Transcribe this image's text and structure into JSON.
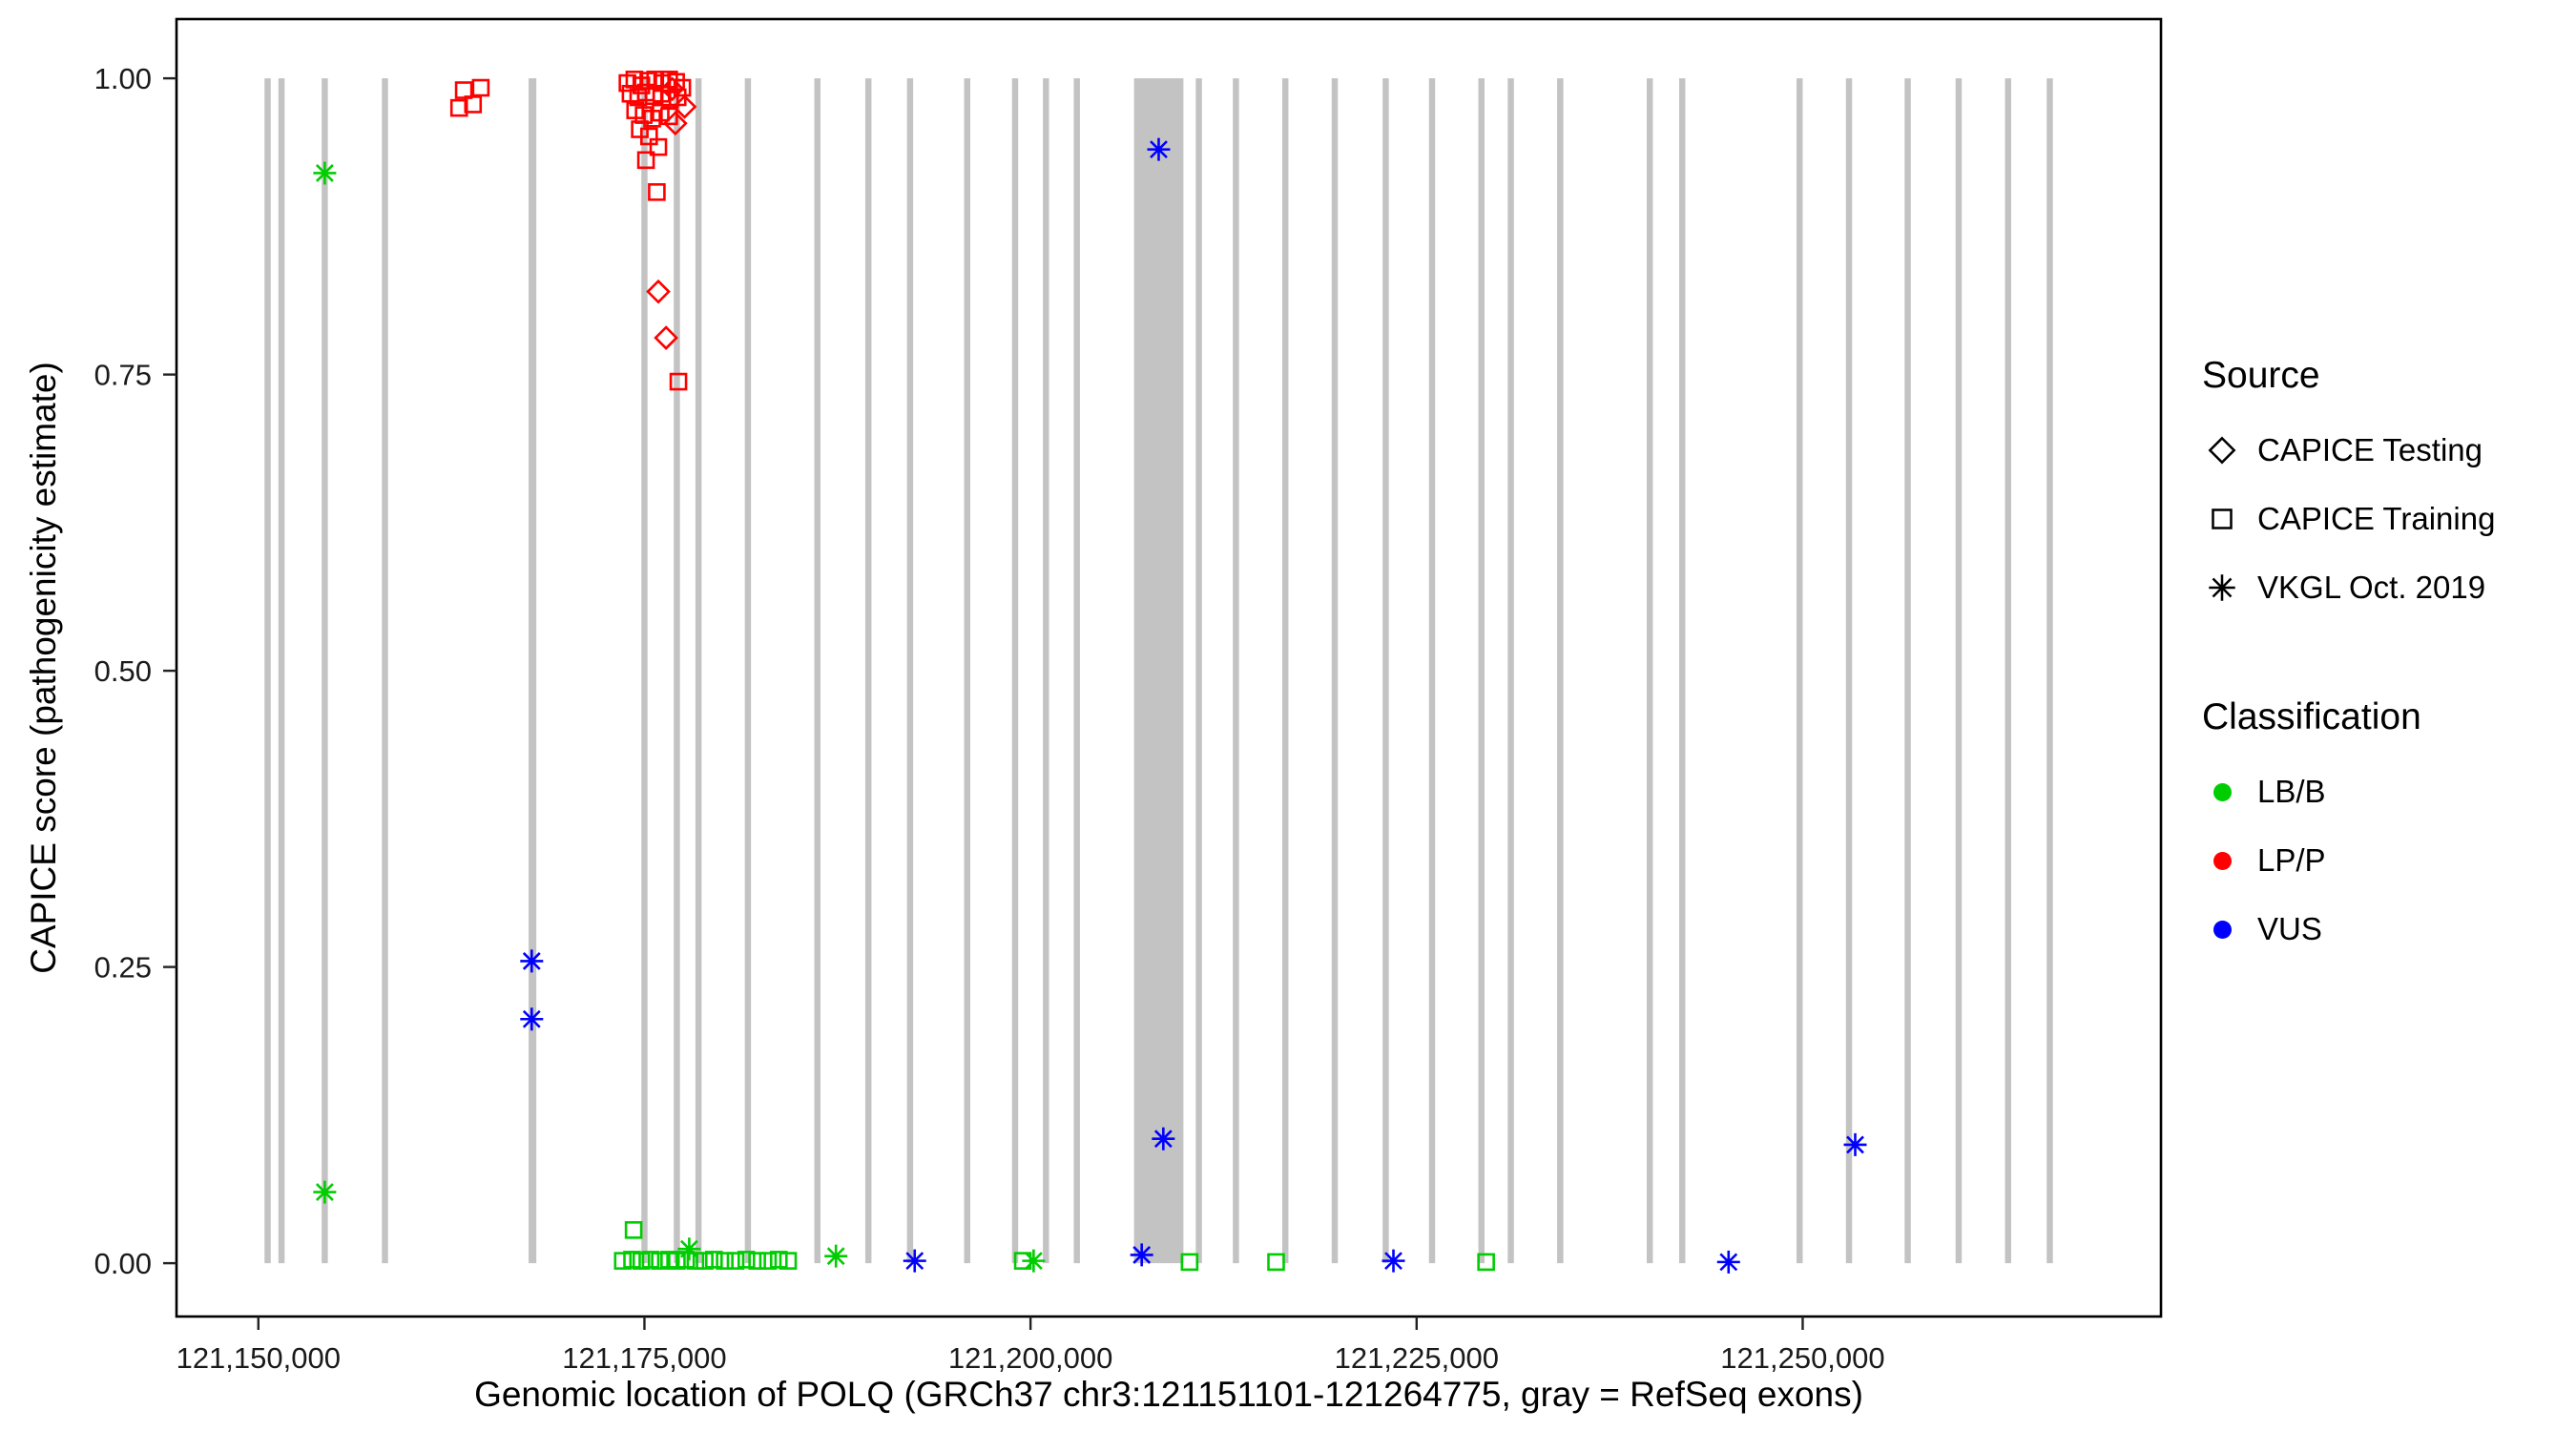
{
  "legend": {
    "source": {
      "title": "Source",
      "items": [
        {
          "label": "CAPICE Testing",
          "shape": "diamond"
        },
        {
          "label": "CAPICE Training",
          "shape": "square"
        },
        {
          "label": "VKGL Oct. 2019",
          "shape": "asterisk"
        }
      ]
    },
    "classification": {
      "title": "Classification",
      "items": [
        {
          "label": "LB/B",
          "color": "#00CD00"
        },
        {
          "label": "LP/P",
          "color": "#FF0000"
        },
        {
          "label": "VUS",
          "color": "#0000FF"
        }
      ]
    }
  },
  "chart_data": {
    "type": "scatter",
    "title": "",
    "xlabel": "Genomic location of POLQ (GRCh37 chr3:121151101-121264775, gray = RefSeq exons)",
    "ylabel": "CAPICE score (pathogenicity estimate)",
    "xlim": [
      121144700,
      121273200
    ],
    "ylim": [
      -0.045,
      1.05
    ],
    "x_ticks": [
      121150000,
      121175000,
      121200000,
      121225000,
      121250000
    ],
    "x_tick_labels": [
      "121,150,000",
      "121,175,000",
      "121,200,000",
      "121,225,000",
      "121,250,000"
    ],
    "y_ticks": [
      0,
      0.25,
      0.5,
      0.75,
      1
    ],
    "y_tick_labels": [
      "0.00",
      "0.25",
      "0.50",
      "0.75",
      "1.00"
    ],
    "grid": false,
    "legend_position": "right",
    "exon_color": "#C3C3C3",
    "colors": {
      "LB/B": "#00CD00",
      "LP/P": "#FF0000",
      "VUS": "#0000FF"
    },
    "exons": [
      [
        121150400,
        121150800
      ],
      [
        121151300,
        121151700
      ],
      [
        121154100,
        121154500
      ],
      [
        121158000,
        121158400
      ],
      [
        121167500,
        121168000
      ],
      [
        121174800,
        121175200
      ],
      [
        121176900,
        121177300
      ],
      [
        121178300,
        121178700
      ],
      [
        121181500,
        121181900
      ],
      [
        121186000,
        121186400
      ],
      [
        121189300,
        121189700
      ],
      [
        121192000,
        121192400
      ],
      [
        121195700,
        121196100
      ],
      [
        121198800,
        121199200
      ],
      [
        121200800,
        121201200
      ],
      [
        121202800,
        121203200
      ],
      [
        121206700,
        121209900
      ],
      [
        121210700,
        121211100
      ],
      [
        121213100,
        121213500
      ],
      [
        121216300,
        121216700
      ],
      [
        121219500,
        121219900
      ],
      [
        121222800,
        121223200
      ],
      [
        121225800,
        121226200
      ],
      [
        121229000,
        121229400
      ],
      [
        121230900,
        121231300
      ],
      [
        121234100,
        121234500
      ],
      [
        121239900,
        121240300
      ],
      [
        121242000,
        121242400
      ],
      [
        121249600,
        121250000
      ],
      [
        121252800,
        121253200
      ],
      [
        121256600,
        121257000
      ],
      [
        121259900,
        121260300
      ],
      [
        121263100,
        121263500
      ],
      [
        121265800,
        121266200
      ]
    ],
    "series": [
      {
        "name": "CAPICE Testing",
        "shape": "diamond",
        "points": [
          {
            "x": 121176800,
            "y": 0.991,
            "cls": "LP/P"
          },
          {
            "x": 121177600,
            "y": 0.976,
            "cls": "LP/P"
          },
          {
            "x": 121177000,
            "y": 0.962,
            "cls": "LP/P"
          },
          {
            "x": 121175900,
            "y": 0.82,
            "cls": "LP/P"
          },
          {
            "x": 121176400,
            "y": 0.781,
            "cls": "LP/P"
          }
        ]
      },
      {
        "name": "CAPICE Training",
        "shape": "square",
        "points": [
          {
            "x": 121163000,
            "y": 0.975,
            "cls": "LP/P"
          },
          {
            "x": 121163300,
            "y": 0.99,
            "cls": "LP/P"
          },
          {
            "x": 121164400,
            "y": 0.992,
            "cls": "LP/P"
          },
          {
            "x": 121163900,
            "y": 0.978,
            "cls": "LP/P"
          },
          {
            "x": 121173900,
            "y": 0.996,
            "cls": "LP/P"
          },
          {
            "x": 121174350,
            "y": 0.999,
            "cls": "LP/P"
          },
          {
            "x": 121174800,
            "y": 0.994,
            "cls": "LP/P"
          },
          {
            "x": 121175250,
            "y": 0.998,
            "cls": "LP/P"
          },
          {
            "x": 121175700,
            "y": 0.999,
            "cls": "LP/P"
          },
          {
            "x": 121176150,
            "y": 0.996,
            "cls": "LP/P"
          },
          {
            "x": 121176600,
            "y": 0.999,
            "cls": "LP/P"
          },
          {
            "x": 121177050,
            "y": 0.997,
            "cls": "LP/P"
          },
          {
            "x": 121177450,
            "y": 0.992,
            "cls": "LP/P"
          },
          {
            "x": 121174100,
            "y": 0.987,
            "cls": "LP/P"
          },
          {
            "x": 121174600,
            "y": 0.984,
            "cls": "LP/P"
          },
          {
            "x": 121175100,
            "y": 0.988,
            "cls": "LP/P"
          },
          {
            "x": 121175600,
            "y": 0.985,
            "cls": "LP/P"
          },
          {
            "x": 121176100,
            "y": 0.987,
            "cls": "LP/P"
          },
          {
            "x": 121176650,
            "y": 0.982,
            "cls": "LP/P"
          },
          {
            "x": 121177150,
            "y": 0.984,
            "cls": "LP/P"
          },
          {
            "x": 121174400,
            "y": 0.973,
            "cls": "LP/P"
          },
          {
            "x": 121174950,
            "y": 0.969,
            "cls": "LP/P"
          },
          {
            "x": 121175500,
            "y": 0.966,
            "cls": "LP/P"
          },
          {
            "x": 121176050,
            "y": 0.971,
            "cls": "LP/P"
          },
          {
            "x": 121176600,
            "y": 0.968,
            "cls": "LP/P"
          },
          {
            "x": 121174700,
            "y": 0.957,
            "cls": "LP/P"
          },
          {
            "x": 121175300,
            "y": 0.951,
            "cls": "LP/P"
          },
          {
            "x": 121175900,
            "y": 0.942,
            "cls": "LP/P"
          },
          {
            "x": 121175100,
            "y": 0.931,
            "cls": "LP/P"
          },
          {
            "x": 121175800,
            "y": 0.904,
            "cls": "LP/P"
          },
          {
            "x": 121177200,
            "y": 0.744,
            "cls": "LP/P"
          },
          {
            "x": 121174300,
            "y": 0.028,
            "cls": "LB/B"
          },
          {
            "x": 121173600,
            "y": 0.002,
            "cls": "LB/B"
          },
          {
            "x": 121174200,
            "y": 0.003,
            "cls": "LB/B"
          },
          {
            "x": 121174800,
            "y": 0.002,
            "cls": "LB/B"
          },
          {
            "x": 121175400,
            "y": 0.003,
            "cls": "LB/B"
          },
          {
            "x": 121176000,
            "y": 0.002,
            "cls": "LB/B"
          },
          {
            "x": 121176600,
            "y": 0.003,
            "cls": "LB/B"
          },
          {
            "x": 121177100,
            "y": 0.002,
            "cls": "LB/B"
          },
          {
            "x": 121177700,
            "y": 0.003,
            "cls": "LB/B"
          },
          {
            "x": 121178300,
            "y": 0.002,
            "cls": "LB/B"
          },
          {
            "x": 121178900,
            "y": 0.002,
            "cls": "LB/B"
          },
          {
            "x": 121179500,
            "y": 0.003,
            "cls": "LB/B"
          },
          {
            "x": 121180200,
            "y": 0.002,
            "cls": "LB/B"
          },
          {
            "x": 121180900,
            "y": 0.002,
            "cls": "LB/B"
          },
          {
            "x": 121181600,
            "y": 0.003,
            "cls": "LB/B"
          },
          {
            "x": 121182300,
            "y": 0.002,
            "cls": "LB/B"
          },
          {
            "x": 121183000,
            "y": 0.002,
            "cls": "LB/B"
          },
          {
            "x": 121183700,
            "y": 0.003,
            "cls": "LB/B"
          },
          {
            "x": 121184300,
            "y": 0.002,
            "cls": "LB/B"
          },
          {
            "x": 121199500,
            "y": 0.002,
            "cls": "LB/B"
          },
          {
            "x": 121210300,
            "y": 0.001,
            "cls": "LB/B"
          },
          {
            "x": 121215900,
            "y": 0.001,
            "cls": "LB/B"
          },
          {
            "x": 121229500,
            "y": 0.001,
            "cls": "LB/B"
          }
        ]
      },
      {
        "name": "VKGL Oct. 2019",
        "shape": "asterisk",
        "points": [
          {
            "x": 121154300,
            "y": 0.92,
            "cls": "LB/B"
          },
          {
            "x": 121154300,
            "y": 0.06,
            "cls": "LB/B"
          },
          {
            "x": 121177900,
            "y": 0.012,
            "cls": "LB/B"
          },
          {
            "x": 121187400,
            "y": 0.006,
            "cls": "LB/B"
          },
          {
            "x": 121200200,
            "y": 0.002,
            "cls": "LB/B"
          },
          {
            "x": 121167700,
            "y": 0.255,
            "cls": "VUS"
          },
          {
            "x": 121167700,
            "y": 0.206,
            "cls": "VUS"
          },
          {
            "x": 121208300,
            "y": 0.94,
            "cls": "VUS"
          },
          {
            "x": 121208600,
            "y": 0.105,
            "cls": "VUS"
          },
          {
            "x": 121207200,
            "y": 0.007,
            "cls": "VUS"
          },
          {
            "x": 121192500,
            "y": 0.002,
            "cls": "VUS"
          },
          {
            "x": 121223500,
            "y": 0.002,
            "cls": "VUS"
          },
          {
            "x": 121245200,
            "y": 0.001,
            "cls": "VUS"
          },
          {
            "x": 121253400,
            "y": 0.1,
            "cls": "VUS"
          }
        ]
      }
    ]
  }
}
